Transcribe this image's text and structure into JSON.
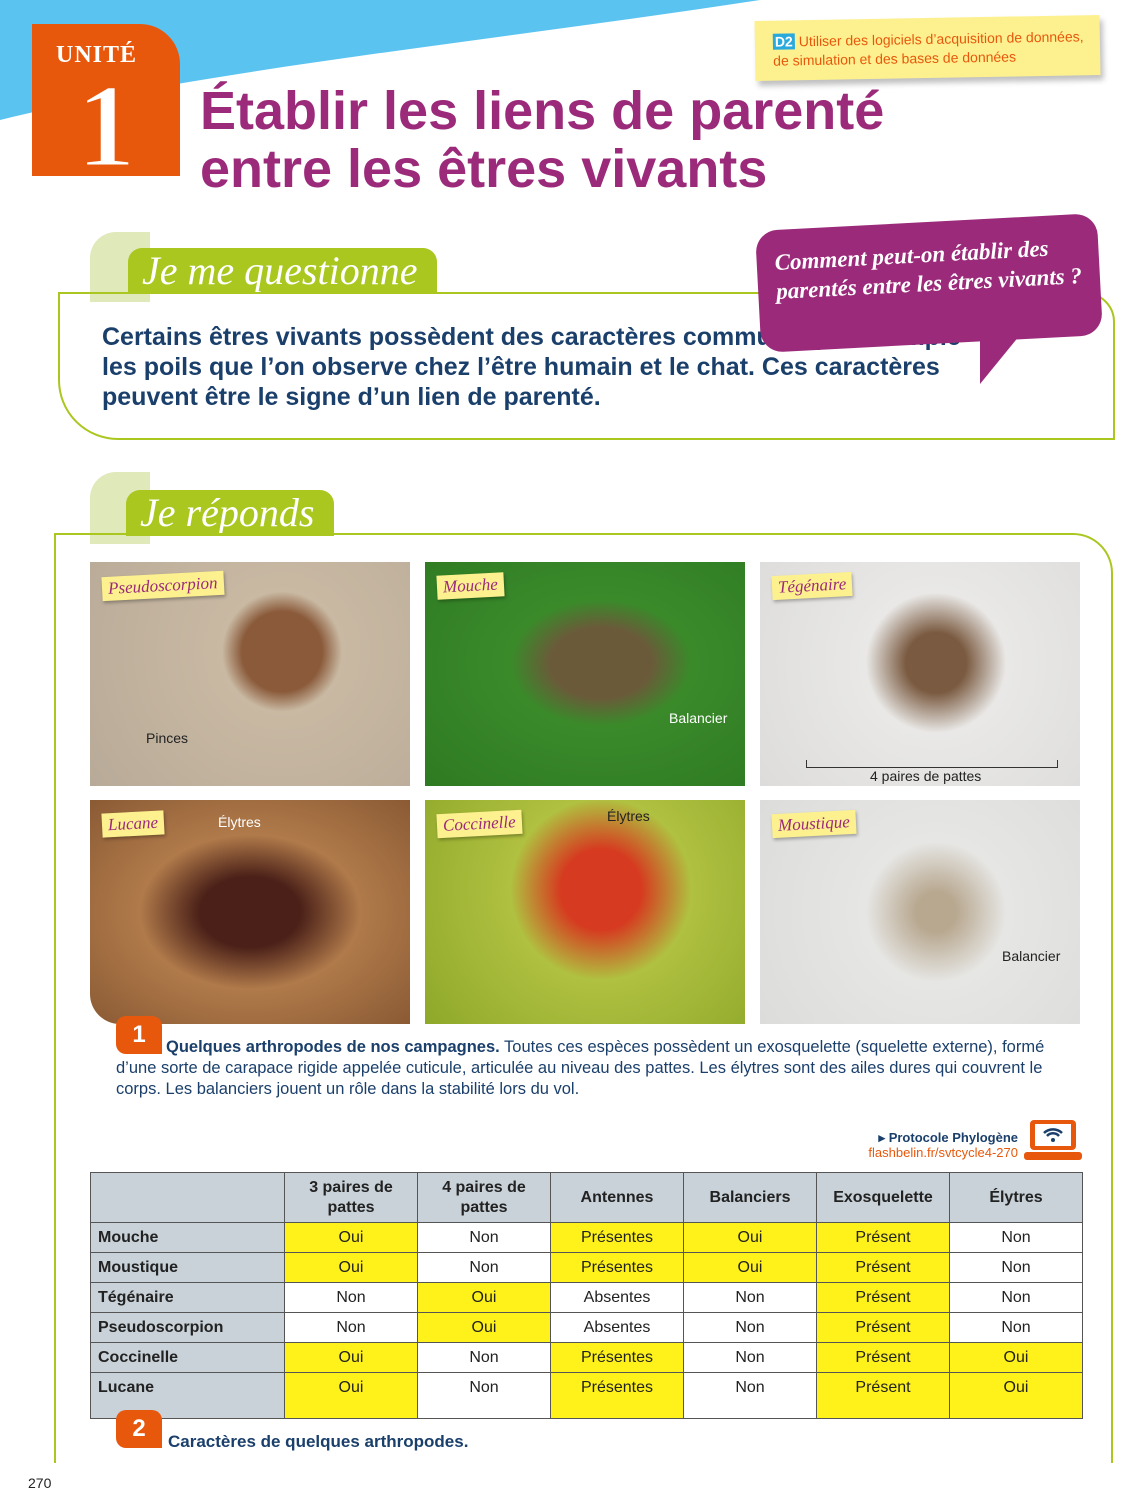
{
  "header": {
    "unit_label": "UNITÉ",
    "unit_number": "1",
    "skill_badge": "D2",
    "skill_text": "Utiliser des logiciels d’acquisition de données, de simulation et des bases de données",
    "title_line1": "Établir les liens de parenté",
    "title_line2": "entre les êtres vivants"
  },
  "question_section": {
    "heading": "Je me questionne",
    "text": "Certains êtres vivants possèdent des caractères communs, par exemple les poils que l’on observe chez l’être humain et le chat. Ces caractères peuvent être le signe d’un lien de parenté.",
    "bubble": "Comment peut-on établir des parentés entre les êtres vivants ?"
  },
  "answer_section": {
    "heading": "Je réponds"
  },
  "photos": [
    {
      "label": "Pseudoscorpion",
      "annotation": "Pinces"
    },
    {
      "label": "Mouche",
      "annotation": "Balancier"
    },
    {
      "label": "Tégénaire",
      "annotation": "4 paires de pattes"
    },
    {
      "label": "Lucane",
      "annotation": "Élytres"
    },
    {
      "label": "Coccinelle",
      "annotation": "Élytres"
    },
    {
      "label": "Moustique",
      "annotation": "Balancier"
    }
  ],
  "doc1": {
    "number": "1",
    "title": "Quelques arthropodes de nos campagnes.",
    "text": " Toutes ces espèces possèdent un exosquelette (squelette externe), formé d’une sorte de carapace rigide appelée cuticule, articulée au niveau des pattes. Les élytres sont des ailes dures qui couvrent le corps. Les balanciers jouent un rôle dans la stabilité lors du vol."
  },
  "resource": {
    "label": "Protocole Phylogène",
    "link": "flashbelin.fr/svtcycle4-270",
    "icon": "laptop-wifi-icon"
  },
  "table": {
    "headers": [
      "",
      "3 paires de pattes",
      "4 paires de pattes",
      "Antennes",
      "Balanciers",
      "Exosquelette",
      "Élytres"
    ],
    "rows": [
      {
        "cells": [
          "Mouche",
          "Oui",
          "Non",
          "Présentes",
          "Oui",
          "Présent",
          "Non"
        ],
        "highlight": [
          false,
          true,
          false,
          true,
          true,
          true,
          false
        ]
      },
      {
        "cells": [
          "Moustique",
          "Oui",
          "Non",
          "Présentes",
          "Oui",
          "Présent",
          "Non"
        ],
        "highlight": [
          false,
          true,
          false,
          true,
          true,
          true,
          false
        ]
      },
      {
        "cells": [
          "Tégénaire",
          "Non",
          "Oui",
          "Absentes",
          "Non",
          "Présent",
          "Non"
        ],
        "highlight": [
          false,
          false,
          true,
          false,
          false,
          true,
          false
        ]
      },
      {
        "cells": [
          "Pseudoscorpion",
          "Non",
          "Oui",
          "Absentes",
          "Non",
          "Présent",
          "Non"
        ],
        "highlight": [
          false,
          false,
          true,
          false,
          false,
          true,
          false
        ]
      },
      {
        "cells": [
          "Coccinelle",
          "Oui",
          "Non",
          "Présentes",
          "Non",
          "Présent",
          "Oui"
        ],
        "highlight": [
          false,
          true,
          false,
          true,
          false,
          true,
          true
        ]
      },
      {
        "cells": [
          "Lucane",
          "Oui",
          "Non",
          "Présentes",
          "Non",
          "Présent",
          "Oui"
        ],
        "highlight": [
          false,
          true,
          false,
          true,
          false,
          true,
          true
        ]
      }
    ],
    "highlight_color": "#fff21a"
  },
  "doc2": {
    "number": "2",
    "title": "Caractères de quelques arthropodes."
  },
  "page_number": "270",
  "colors": {
    "purple": "#9b2a7a",
    "orange": "#e8580c",
    "green": "#a9c71f",
    "blue_text": "#1a3f6b",
    "sky": "#5bc3f0"
  }
}
